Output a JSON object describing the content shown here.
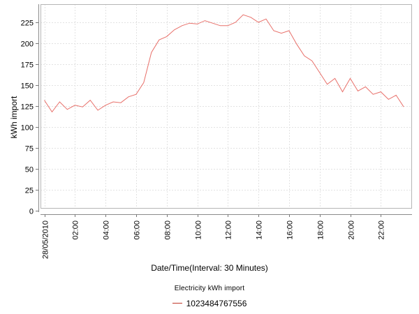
{
  "chart_data": {
    "type": "line",
    "title": "",
    "xlabel": "Date/Time(Interval: 30 Minutes)",
    "ylabel": "kWh import",
    "ylim": [
      0,
      240
    ],
    "yticks": [
      0,
      25,
      50,
      75,
      100,
      125,
      150,
      175,
      200,
      225
    ],
    "xtick_labels": [
      "28/05/2010",
      "02:00",
      "04:00",
      "06:00",
      "08:00",
      "10:00",
      "12:00",
      "14:00",
      "16:00",
      "18:00",
      "20:00",
      "22:00"
    ],
    "grid": true,
    "legend_position": "bottom",
    "legend_title": "Electricity kWh import",
    "x": [
      "00:00",
      "00:30",
      "01:00",
      "01:30",
      "02:00",
      "02:30",
      "03:00",
      "03:30",
      "04:00",
      "04:30",
      "05:00",
      "05:30",
      "06:00",
      "06:30",
      "07:00",
      "07:30",
      "08:00",
      "08:30",
      "09:00",
      "09:30",
      "10:00",
      "10:30",
      "11:00",
      "11:30",
      "12:00",
      "12:30",
      "13:00",
      "13:30",
      "14:00",
      "14:30",
      "15:00",
      "15:30",
      "16:00",
      "16:30",
      "17:00",
      "17:30",
      "18:00",
      "18:30",
      "19:00",
      "19:30",
      "20:00",
      "20:30",
      "21:00",
      "21:30",
      "22:00",
      "22:30",
      "23:00",
      "23:30"
    ],
    "series": [
      {
        "name": "1023484767556",
        "color": "#e8706a",
        "values": [
          132,
          118,
          130,
          121,
          126,
          124,
          132,
          120,
          126,
          130,
          129,
          136,
          139,
          153,
          189,
          204,
          208,
          216,
          221,
          224,
          223,
          227,
          224,
          221,
          221,
          225,
          234,
          231,
          225,
          229,
          215,
          212,
          215,
          199,
          185,
          179,
          165,
          151,
          158,
          142,
          158,
          143,
          148,
          139,
          142,
          133,
          138,
          124
        ]
      }
    ]
  },
  "axis": {
    "x_title": "Date/Time(Interval: 30 Minutes)",
    "y_title": "kWh import"
  },
  "legend": {
    "title": "Electricity kWh import",
    "entries": [
      {
        "label": "1023484767556",
        "color": "#c0392b"
      }
    ]
  }
}
